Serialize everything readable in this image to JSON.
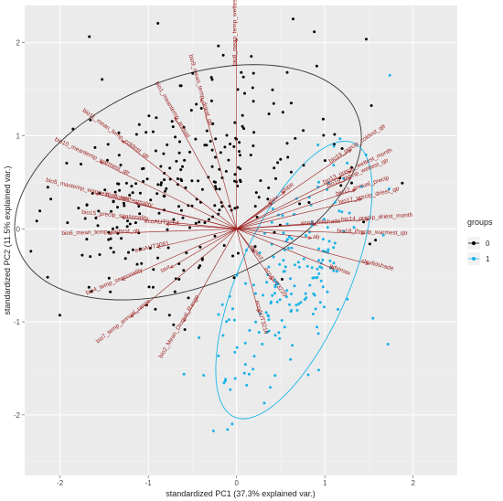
{
  "chart_data": {
    "type": "scatter",
    "subtype": "pca-biplot",
    "title": "",
    "xlabel": "standardized PC1 (37.3% explained var.)",
    "ylabel": "standardized PC2 (11.5% explained var.)",
    "xlim": [
      -2.4,
      2.5
    ],
    "ylim": [
      -2.65,
      2.4
    ],
    "x_ticks": [
      -2,
      -1,
      0,
      1,
      2
    ],
    "y_ticks": [
      -2,
      -1,
      0,
      1,
      2
    ],
    "x_tick_labels": [
      "-2",
      "-1",
      "0",
      "1",
      "2"
    ],
    "y_tick_labels": [
      "-2",
      "-1",
      "0",
      "1",
      "2"
    ],
    "grid": true,
    "panel_background": "#ebebeb",
    "grid_color": "#ffffff",
    "legend": {
      "title": "groups",
      "placement": "right",
      "entries": [
        {
          "label": "0",
          "color": "#000000"
        },
        {
          "label": "1",
          "color": "#1bb3e6"
        }
      ]
    },
    "ellipses": [
      {
        "group": "0",
        "color": "#333333",
        "center": [
          -0.55,
          0.5
        ],
        "semi_axes": [
          2.05,
          1.12
        ],
        "rotation_deg": 20
      },
      {
        "group": "1",
        "color": "#1ab7ea",
        "center": [
          0.65,
          -0.55
        ],
        "semi_axes": [
          1.62,
          0.62
        ],
        "rotation_deg": 65
      }
    ],
    "vector_color": "#9b1c1c",
    "vectors": [
      {
        "label": "bio8_mean_temp_wettest_qtr",
        "x": 0.0,
        "y": 2.05
      },
      {
        "label": "bio9_mean_temp_driest_qtr",
        "x": -0.4,
        "y": 1.4
      },
      {
        "label": "bio1_meantemp_annual",
        "x": -0.7,
        "y": 1.2
      },
      {
        "label": "bio11_mean_temp_coldest_qtr",
        "x": -1.3,
        "y": 0.95
      },
      {
        "label": "bio10_meantemp_warmest_qtr",
        "x": -1.55,
        "y": 0.72
      },
      {
        "label": "bio5_maxtemp_warmest_month",
        "x": -1.6,
        "y": 0.38
      },
      {
        "label": "bio15_precip_seasonality",
        "x": -1.3,
        "y": 0.12
      },
      {
        "label": "bio3_isothermality",
        "x": -1.15,
        "y": 0.28
      },
      {
        "label": "bio6_mean_temp_wettest_qtr",
        "x": -1.45,
        "y": -0.05
      },
      {
        "label": "ecoAUT3264",
        "x": -0.8,
        "y": 0.05
      },
      {
        "label": "ecoAUT3081",
        "x": -0.9,
        "y": -0.2
      },
      {
        "label": "tavr",
        "x": -0.75,
        "y": -0.42
      },
      {
        "label": "bio4_temp_seasonality",
        "x": -1.3,
        "y": -0.55
      },
      {
        "label": "bio7_temp_annual_range",
        "x": -1.2,
        "y": -0.95
      },
      {
        "label": "bio2_Mean_Diurnal_Range",
        "x": -0.6,
        "y": -1.0
      },
      {
        "label": "bio19_precip_coldest_qtr",
        "x": 1.3,
        "y": 0.85
      },
      {
        "label": "bio13_precip_wettest_month",
        "x": 1.3,
        "y": 0.62
      },
      {
        "label": "bio16_precip_wettest_qtr",
        "x": 1.3,
        "y": 0.55
      },
      {
        "label": "bio12_annual_precip",
        "x": 1.35,
        "y": 0.42
      },
      {
        "label": "bio17_precip_driest_qtr",
        "x": 1.42,
        "y": 0.32
      },
      {
        "label": "bio14_precip_driest_month",
        "x": 1.5,
        "y": 0.1
      },
      {
        "label": "bio18_Precip_warmest_qtr",
        "x": 1.45,
        "y": -0.05
      },
      {
        "label": "eco3_hillshade",
        "x": 0.9,
        "y": 0.05
      },
      {
        "label": "ab",
        "x": 0.85,
        "y": -0.1
      },
      {
        "label": "slevfidshade",
        "x": 1.5,
        "y": -0.38
      },
      {
        "label": "ndvimax",
        "x": 1.1,
        "y": -0.43
      },
      {
        "label": "ecoAUT3220",
        "x": 0.4,
        "y": -0.55
      },
      {
        "label": "ecoAUT3216",
        "x": 0.25,
        "y": -0.9
      },
      {
        "label": "slope",
        "x": 0.55,
        "y": 0.4
      },
      {
        "label": "elev",
        "x": 0.4,
        "y": 0.28
      },
      {
        "label": "aspect",
        "x": 0.2,
        "y": -0.25
      }
    ]
  }
}
